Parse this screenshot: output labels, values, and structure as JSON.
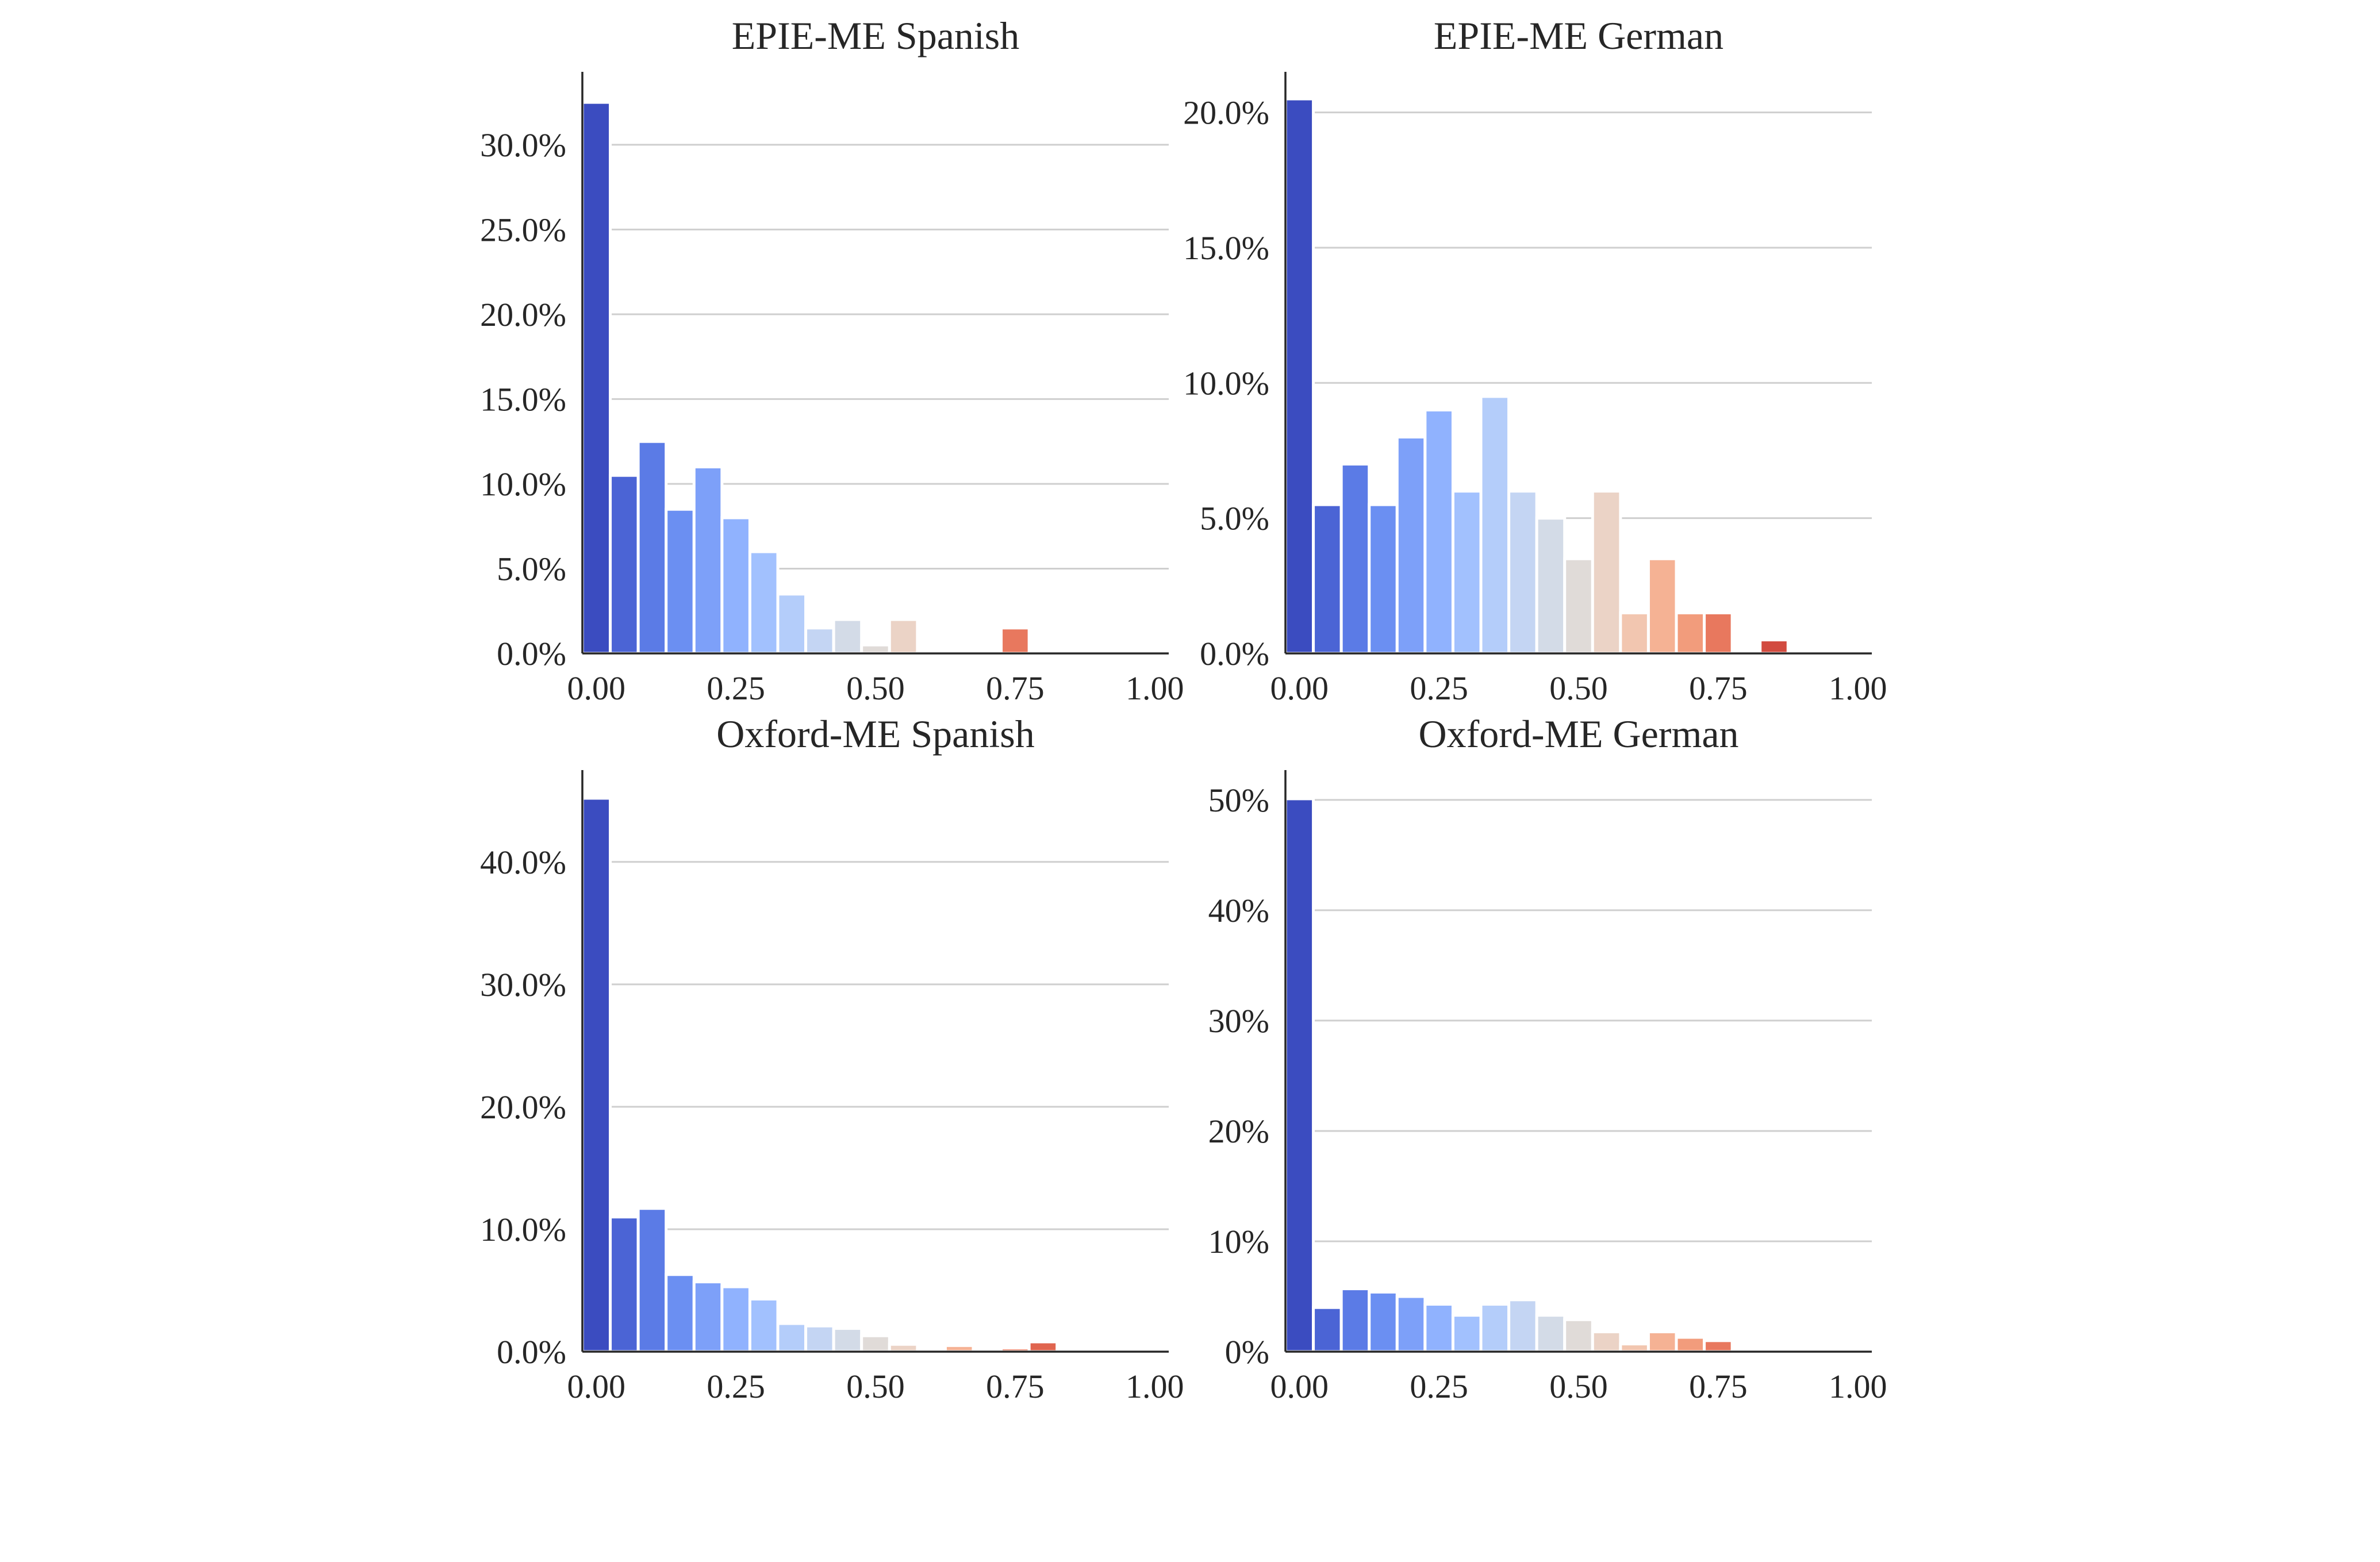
{
  "chart_data": [
    {
      "type": "bar",
      "title": "EPIE-ME Spanish",
      "xlim": [
        0,
        1.0
      ],
      "x_ticks": [
        "0.00",
        "0.25",
        "0.50",
        "0.75",
        "1.00"
      ],
      "ylim": [
        0,
        34.3
      ],
      "y_ticks": [
        {
          "value": 0,
          "label": "0.0%"
        },
        {
          "value": 5,
          "label": "5.0%"
        },
        {
          "value": 10,
          "label": "10.0%"
        },
        {
          "value": 15,
          "label": "15.0%"
        },
        {
          "value": 20,
          "label": "20.0%"
        },
        {
          "value": 25,
          "label": "25.0%"
        },
        {
          "value": 30,
          "label": "30.0%"
        }
      ],
      "bin_width": 0.05,
      "bins": [
        {
          "x": 0.0,
          "value": 32.5,
          "color": "#3b4cc0"
        },
        {
          "x": 0.05,
          "value": 10.5,
          "color": "#4b64d5"
        },
        {
          "x": 0.1,
          "value": 12.5,
          "color": "#5b7be6"
        },
        {
          "x": 0.15,
          "value": 8.5,
          "color": "#6b8ff2"
        },
        {
          "x": 0.2,
          "value": 11.0,
          "color": "#7da0f9"
        },
        {
          "x": 0.25,
          "value": 8.0,
          "color": "#90b2fe"
        },
        {
          "x": 0.3,
          "value": 6.0,
          "color": "#a2c1fe"
        },
        {
          "x": 0.35,
          "value": 3.5,
          "color": "#b4cdfa"
        },
        {
          "x": 0.4,
          "value": 1.5,
          "color": "#c4d5f3"
        },
        {
          "x": 0.45,
          "value": 2.0,
          "color": "#d3dbe7"
        },
        {
          "x": 0.5,
          "value": 0.5,
          "color": "#e0dbd8"
        },
        {
          "x": 0.55,
          "value": 2.0,
          "color": "#ebd3c6"
        },
        {
          "x": 0.75,
          "value": 1.5,
          "color": "#e8785e"
        }
      ]
    },
    {
      "type": "bar",
      "title": "EPIE-ME German",
      "xlim": [
        0,
        1.0
      ],
      "x_ticks": [
        "0.00",
        "0.25",
        "0.50",
        "0.75",
        "1.00"
      ],
      "ylim": [
        0,
        21.5
      ],
      "y_ticks": [
        {
          "value": 0,
          "label": "0.0%"
        },
        {
          "value": 5,
          "label": "5.0%"
        },
        {
          "value": 10,
          "label": "10.0%"
        },
        {
          "value": 15,
          "label": "15.0%"
        },
        {
          "value": 20,
          "label": "20.0%"
        }
      ],
      "bin_width": 0.05,
      "bins": [
        {
          "x": 0.0,
          "value": 20.5,
          "color": "#3b4cc0"
        },
        {
          "x": 0.05,
          "value": 5.5,
          "color": "#4b64d5"
        },
        {
          "x": 0.1,
          "value": 7.0,
          "color": "#5b7be6"
        },
        {
          "x": 0.15,
          "value": 5.5,
          "color": "#6b8ff2"
        },
        {
          "x": 0.2,
          "value": 8.0,
          "color": "#7da0f9"
        },
        {
          "x": 0.25,
          "value": 9.0,
          "color": "#90b2fe"
        },
        {
          "x": 0.3,
          "value": 6.0,
          "color": "#a2c1fe"
        },
        {
          "x": 0.35,
          "value": 9.5,
          "color": "#b4cdfa"
        },
        {
          "x": 0.4,
          "value": 6.0,
          "color": "#c4d5f3"
        },
        {
          "x": 0.45,
          "value": 5.0,
          "color": "#d3dbe7"
        },
        {
          "x": 0.5,
          "value": 3.5,
          "color": "#e0dbd8"
        },
        {
          "x": 0.55,
          "value": 6.0,
          "color": "#ebd3c6"
        },
        {
          "x": 0.6,
          "value": 1.5,
          "color": "#f2c6b0"
        },
        {
          "x": 0.65,
          "value": 3.5,
          "color": "#f5b294"
        },
        {
          "x": 0.7,
          "value": 1.5,
          "color": "#f29c7c"
        },
        {
          "x": 0.75,
          "value": 1.5,
          "color": "#e8785e"
        },
        {
          "x": 0.85,
          "value": 0.5,
          "color": "#d24b40"
        }
      ]
    },
    {
      "type": "bar",
      "title": "Oxford-ME Spanish",
      "xlim": [
        0,
        1.0
      ],
      "x_ticks": [
        "0.00",
        "0.25",
        "0.50",
        "0.75",
        "1.00"
      ],
      "ylim": [
        0,
        47.5
      ],
      "y_ticks": [
        {
          "value": 0,
          "label": "0.0%"
        },
        {
          "value": 10,
          "label": "10.0%"
        },
        {
          "value": 20,
          "label": "20.0%"
        },
        {
          "value": 30,
          "label": "30.0%"
        },
        {
          "value": 40,
          "label": "40.0%"
        }
      ],
      "bin_width": 0.05,
      "bins": [
        {
          "x": 0.0,
          "value": 45.2,
          "color": "#3b4cc0"
        },
        {
          "x": 0.05,
          "value": 11.0,
          "color": "#4b64d5"
        },
        {
          "x": 0.1,
          "value": 11.7,
          "color": "#5b7be6"
        },
        {
          "x": 0.15,
          "value": 6.3,
          "color": "#6b8ff2"
        },
        {
          "x": 0.2,
          "value": 5.7,
          "color": "#7da0f9"
        },
        {
          "x": 0.25,
          "value": 5.3,
          "color": "#90b2fe"
        },
        {
          "x": 0.3,
          "value": 4.3,
          "color": "#a2c1fe"
        },
        {
          "x": 0.35,
          "value": 2.3,
          "color": "#b4cdfa"
        },
        {
          "x": 0.4,
          "value": 2.1,
          "color": "#c4d5f3"
        },
        {
          "x": 0.45,
          "value": 1.9,
          "color": "#d3dbe7"
        },
        {
          "x": 0.5,
          "value": 1.3,
          "color": "#e0dbd8"
        },
        {
          "x": 0.55,
          "value": 0.6,
          "color": "#ebd3c6"
        },
        {
          "x": 0.65,
          "value": 0.5,
          "color": "#f5b294"
        },
        {
          "x": 0.75,
          "value": 0.3,
          "color": "#e8785e"
        },
        {
          "x": 0.8,
          "value": 0.8,
          "color": "#e0654f"
        }
      ]
    },
    {
      "type": "bar",
      "title": "Oxford-ME German",
      "xlim": [
        0,
        1.0
      ],
      "x_ticks": [
        "0.00",
        "0.25",
        "0.50",
        "0.75",
        "1.00"
      ],
      "ylim": [
        0,
        52.7
      ],
      "y_ticks": [
        {
          "value": 0,
          "label": "0%"
        },
        {
          "value": 10,
          "label": "10%"
        },
        {
          "value": 20,
          "label": "20%"
        },
        {
          "value": 30,
          "label": "30%"
        },
        {
          "value": 40,
          "label": "40%"
        },
        {
          "value": 50,
          "label": "50%"
        }
      ],
      "bin_width": 0.05,
      "bins": [
        {
          "x": 0.0,
          "value": 50.1,
          "color": "#3b4cc0"
        },
        {
          "x": 0.05,
          "value": 4.0,
          "color": "#4b64d5"
        },
        {
          "x": 0.1,
          "value": 5.7,
          "color": "#5b7be6"
        },
        {
          "x": 0.15,
          "value": 5.4,
          "color": "#6b8ff2"
        },
        {
          "x": 0.2,
          "value": 5.0,
          "color": "#7da0f9"
        },
        {
          "x": 0.25,
          "value": 4.3,
          "color": "#90b2fe"
        },
        {
          "x": 0.3,
          "value": 3.3,
          "color": "#a2c1fe"
        },
        {
          "x": 0.35,
          "value": 4.3,
          "color": "#b4cdfa"
        },
        {
          "x": 0.4,
          "value": 4.7,
          "color": "#c4d5f3"
        },
        {
          "x": 0.45,
          "value": 3.3,
          "color": "#d3dbe7"
        },
        {
          "x": 0.5,
          "value": 2.9,
          "color": "#e0dbd8"
        },
        {
          "x": 0.55,
          "value": 1.8,
          "color": "#ebd3c6"
        },
        {
          "x": 0.6,
          "value": 0.7,
          "color": "#f2c6b0"
        },
        {
          "x": 0.65,
          "value": 1.8,
          "color": "#f5b294"
        },
        {
          "x": 0.7,
          "value": 1.3,
          "color": "#f29c7c"
        },
        {
          "x": 0.75,
          "value": 1.0,
          "color": "#e8785e"
        }
      ]
    }
  ]
}
